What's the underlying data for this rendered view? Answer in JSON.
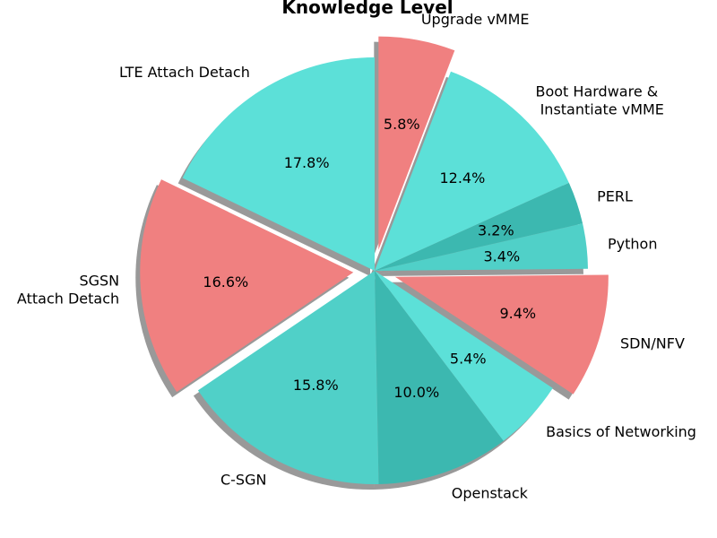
{
  "chart_data": {
    "type": "pie",
    "title": "Knowledge Level",
    "start_angle_deg": 90,
    "direction": "clockwise",
    "shadow": true,
    "slices": [
      {
        "label": "Upgrade vMME",
        "pct_label": "5.8%",
        "value": 5.8,
        "color": "#f08080",
        "explode": 0.1
      },
      {
        "label": "Boot Hardware &\n Instantiate vMME",
        "pct_label": "12.4%",
        "value": 12.4,
        "color": "#5ce0d8",
        "explode": 0
      },
      {
        "label": "PERL",
        "pct_label": "3.2%",
        "value": 3.2,
        "color": "#3cb8b0",
        "explode": 0
      },
      {
        "label": "Python",
        "pct_label": "3.4%",
        "value": 3.4,
        "color": "#50d0c8",
        "explode": 0
      },
      {
        "label": "SDN/NFV",
        "pct_label": "9.4%",
        "value": 9.4,
        "color": "#f08080",
        "explode": 0.1
      },
      {
        "label": "Basics of Networking",
        "pct_label": "5.4%",
        "value": 5.4,
        "color": "#5ce0d8",
        "explode": 0
      },
      {
        "label": "Openstack",
        "pct_label": "10.0%",
        "value": 10.0,
        "color": "#3cb8b0",
        "explode": 0
      },
      {
        "label": "C-SGN",
        "pct_label": "15.8%",
        "value": 15.8,
        "color": "#50d0c8",
        "explode": 0
      },
      {
        "label": "SGSN\nAttach Detach",
        "pct_label": "16.6%",
        "value": 16.6,
        "color": "#f08080",
        "explode": 0.1
      },
      {
        "label": "LTE Attach Detach",
        "pct_label": "17.8%",
        "value": 17.8,
        "color": "#5ce0d8",
        "explode": 0
      }
    ]
  }
}
